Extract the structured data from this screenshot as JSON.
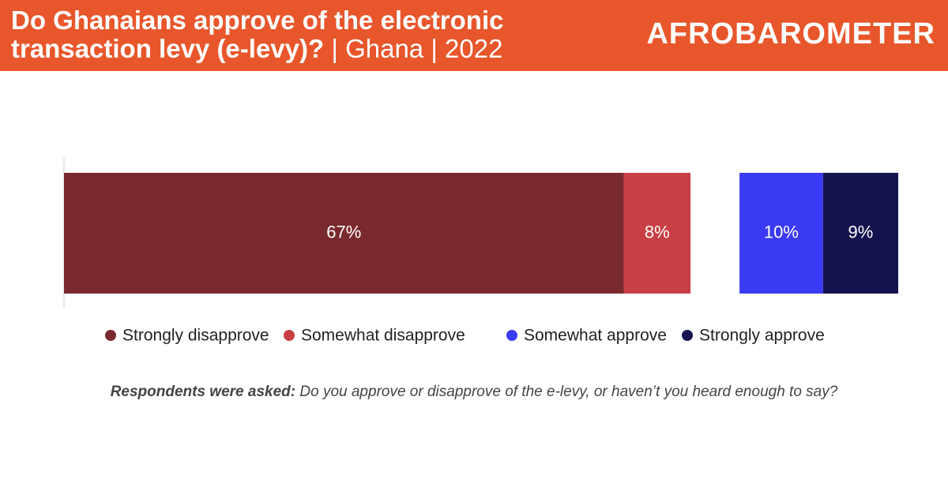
{
  "chart_data": {
    "type": "bar",
    "orientation": "horizontal",
    "stacked": true,
    "title": "Do Ghanaians approve of the electronic transaction levy (e-levy)?",
    "subtitle": "| Ghana | 2022",
    "series": [
      {
        "name": "Strongly disapprove",
        "color": "#7a2a2e",
        "values": [
          67
        ],
        "value_labels": [
          "67%"
        ]
      },
      {
        "name": "Somewhat disapprove",
        "color": "#c83f46",
        "values": [
          8
        ],
        "value_labels": [
          "8%"
        ]
      },
      {
        "name": "Somewhat approve",
        "color": "#3b3af5",
        "values": [
          10
        ],
        "value_labels": [
          "10%"
        ]
      },
      {
        "name": "Strongly approve",
        "color": "#14134f",
        "values": [
          9
        ],
        "value_labels": [
          "9%"
        ]
      }
    ],
    "note": {
      "label": "Respondents were asked:",
      "text": "Do you approve or disapprove of the e-levy, or haven’t you heard enough to say?"
    }
  },
  "logo": "AFROBAROMETER"
}
